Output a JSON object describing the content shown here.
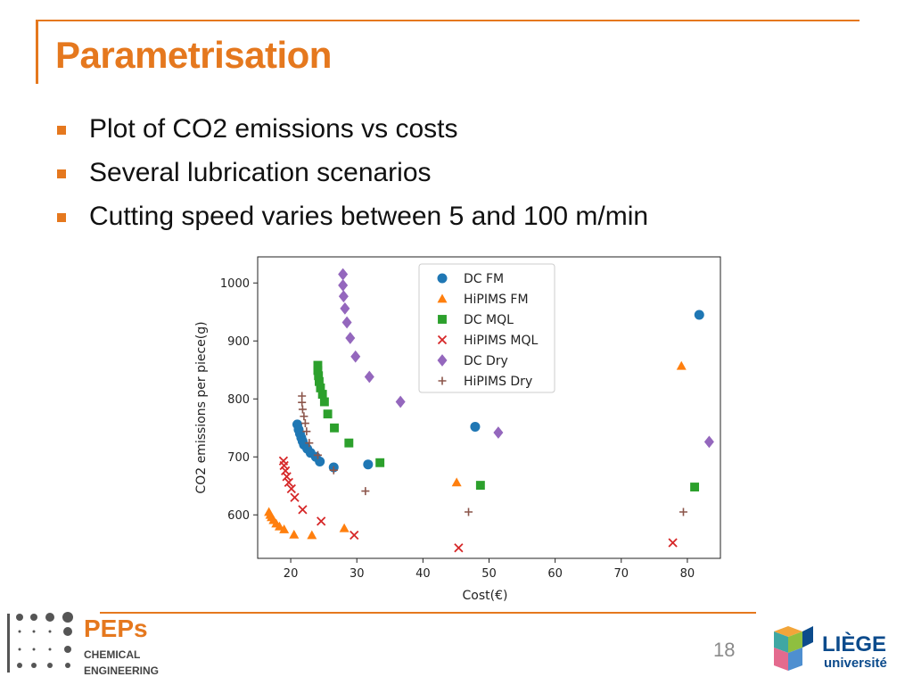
{
  "slide": {
    "title": "Parametrisation",
    "bullets": [
      "Plot of CO2 emissions vs costs",
      "Several lubrication scenarios",
      "Cutting speed varies between 5 and 100 m/min"
    ],
    "page_number": "18",
    "accent_color": "#e5781e"
  },
  "logos": {
    "peps": {
      "line1": "PEPs",
      "line2": "CHEMICAL",
      "line3": "ENGINEERING"
    },
    "liege": {
      "line1": "LIÈGE",
      "line2": "université"
    }
  },
  "chart_data": {
    "type": "scatter",
    "xlabel": "Cost(€)",
    "ylabel": "CO2 emissions per piece(g)",
    "xlim": [
      15,
      85
    ],
    "ylim": [
      525,
      1045
    ],
    "xticks": [
      20,
      30,
      40,
      50,
      60,
      70,
      80
    ],
    "yticks": [
      600,
      700,
      800,
      900,
      1000
    ],
    "grid": false,
    "legend_position": "top-center",
    "series": [
      {
        "name": "DC FM",
        "marker": "circle",
        "color": "#1f77b4",
        "points": [
          [
            21.0,
            756
          ],
          [
            21.2,
            747
          ],
          [
            21.4,
            740
          ],
          [
            21.6,
            733
          ],
          [
            21.8,
            727
          ],
          [
            22.0,
            721
          ],
          [
            22.5,
            714
          ],
          [
            23.0,
            707
          ],
          [
            23.8,
            700
          ],
          [
            24.4,
            692
          ],
          [
            26.5,
            682
          ],
          [
            31.7,
            687
          ],
          [
            47.9,
            752
          ],
          [
            81.8,
            945
          ]
        ]
      },
      {
        "name": "HiPIMS FM",
        "marker": "triangle",
        "color": "#ff7f0e",
        "points": [
          [
            16.7,
            605
          ],
          [
            16.9,
            600
          ],
          [
            17.1,
            596
          ],
          [
            17.4,
            591
          ],
          [
            17.8,
            585
          ],
          [
            18.3,
            580
          ],
          [
            19.0,
            575
          ],
          [
            20.5,
            566
          ],
          [
            23.2,
            565
          ],
          [
            28.1,
            577
          ],
          [
            45.1,
            656
          ],
          [
            79.1,
            857
          ]
        ]
      },
      {
        "name": "DC MQL",
        "marker": "square",
        "color": "#2ca02c",
        "points": [
          [
            24.1,
            858
          ],
          [
            24.1,
            849
          ],
          [
            24.2,
            840
          ],
          [
            24.3,
            830
          ],
          [
            24.5,
            819
          ],
          [
            24.8,
            808
          ],
          [
            25.1,
            795
          ],
          [
            25.6,
            774
          ],
          [
            26.6,
            750
          ],
          [
            28.8,
            724
          ],
          [
            33.5,
            690
          ],
          [
            48.7,
            651
          ],
          [
            81.1,
            648
          ]
        ]
      },
      {
        "name": "HiPIMS MQL",
        "marker": "x",
        "color": "#d62728",
        "points": [
          [
            18.9,
            693
          ],
          [
            19.0,
            685
          ],
          [
            19.2,
            676
          ],
          [
            19.4,
            666
          ],
          [
            19.7,
            656
          ],
          [
            20.1,
            645
          ],
          [
            20.6,
            630
          ],
          [
            21.8,
            609
          ],
          [
            24.6,
            589
          ],
          [
            29.6,
            565
          ],
          [
            45.4,
            543
          ],
          [
            77.8,
            552
          ]
        ]
      },
      {
        "name": "DC Dry",
        "marker": "diamond",
        "color": "#9467bd",
        "points": [
          [
            27.9,
            1015
          ],
          [
            27.9,
            996
          ],
          [
            28.0,
            977
          ],
          [
            28.2,
            956
          ],
          [
            28.5,
            932
          ],
          [
            29.0,
            905
          ],
          [
            29.8,
            873
          ],
          [
            31.9,
            838
          ],
          [
            36.6,
            795
          ],
          [
            51.4,
            742
          ],
          [
            83.3,
            726
          ]
        ]
      },
      {
        "name": "HiPIMS Dry",
        "marker": "plus",
        "color": "#8c564b",
        "points": [
          [
            21.7,
            805
          ],
          [
            21.7,
            794
          ],
          [
            21.8,
            782
          ],
          [
            22.0,
            770
          ],
          [
            22.2,
            758
          ],
          [
            22.4,
            744
          ],
          [
            22.8,
            724
          ],
          [
            24.1,
            703
          ],
          [
            26.5,
            677
          ],
          [
            31.3,
            641
          ],
          [
            46.9,
            605
          ],
          [
            79.4,
            605
          ]
        ]
      }
    ]
  }
}
